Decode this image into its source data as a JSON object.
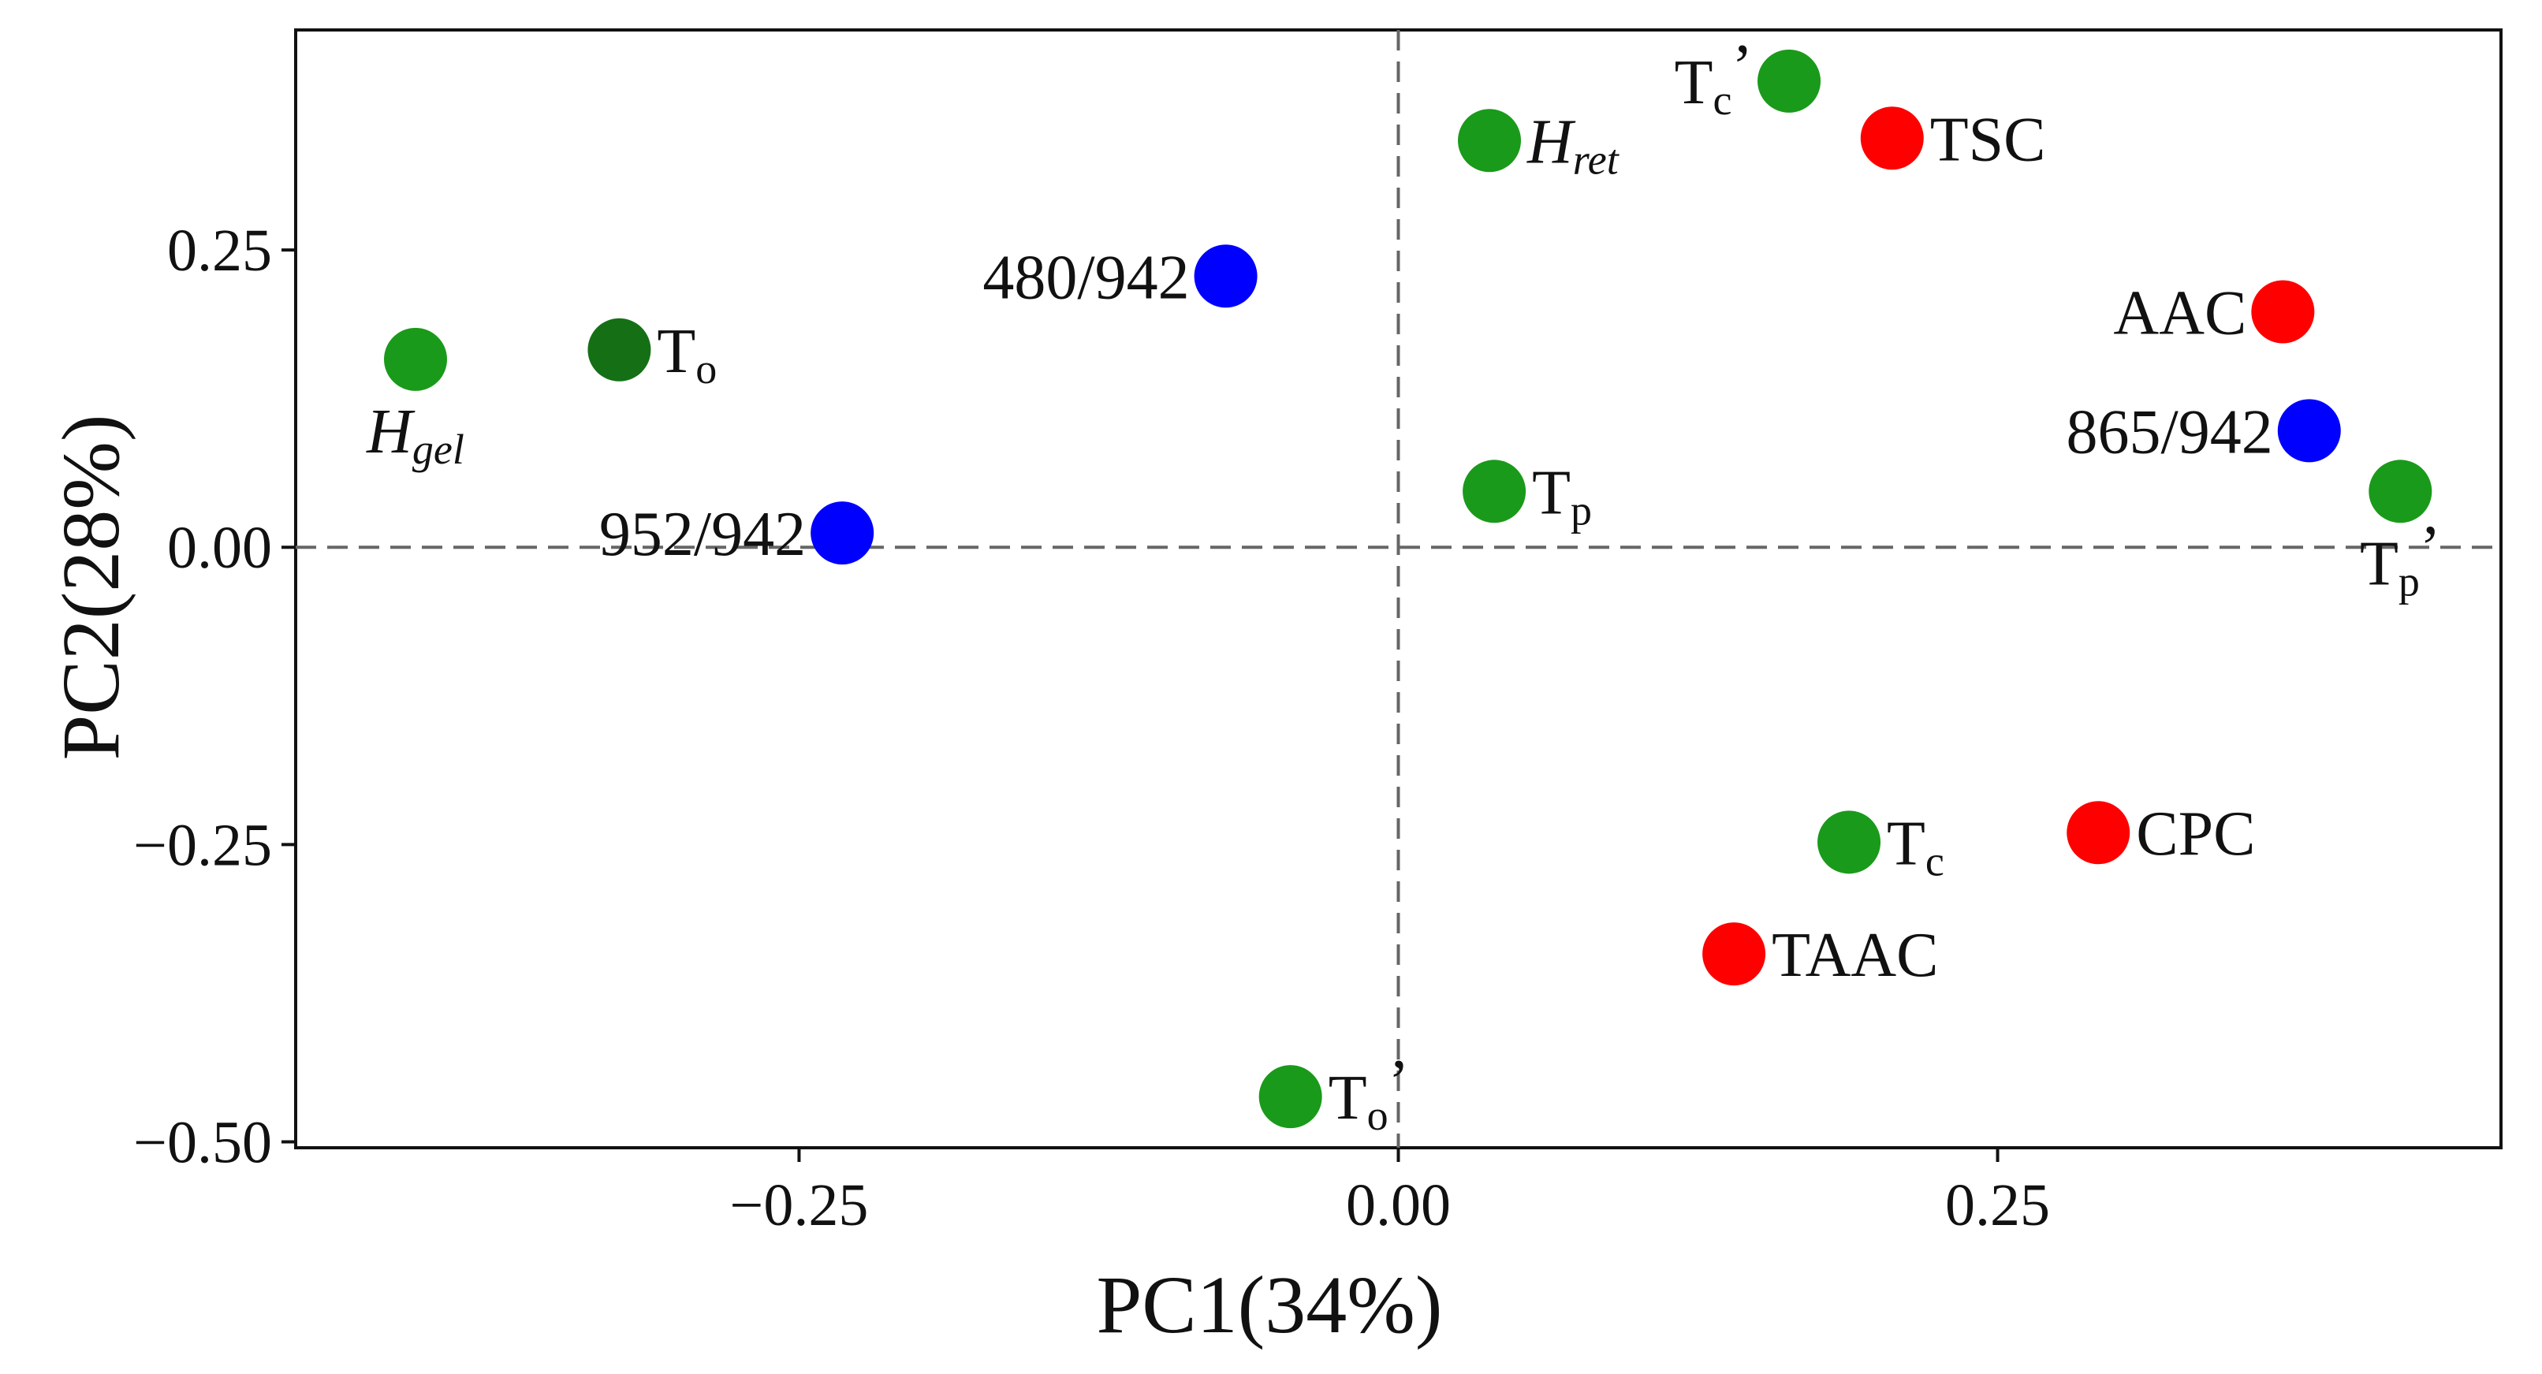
{
  "chart_data": {
    "type": "scatter",
    "title": "",
    "xlabel": "PC1(34%)",
    "ylabel": "PC2(28%)",
    "xlim": [
      -0.46,
      0.46
    ],
    "ylim": [
      -0.505,
      0.435
    ],
    "xticks": [
      {
        "value": -0.25,
        "label": "−0.25"
      },
      {
        "value": 0.0,
        "label": "0.00"
      },
      {
        "value": 0.25,
        "label": "0.25"
      }
    ],
    "yticks": [
      {
        "value": 0.25,
        "label": "0.25"
      },
      {
        "value": 0.0,
        "label": "0.00"
      },
      {
        "value": -0.25,
        "label": "−0.25"
      },
      {
        "value": -0.5,
        "label": "−0.50"
      }
    ],
    "reference_lines": {
      "x": 0,
      "y": 0
    },
    "grid": false,
    "colors": {
      "green": "#1a9a1a",
      "dark_green": "#157015",
      "red": "#ff0000",
      "blue": "#0000ff",
      "axis": "#111111",
      "refline": "#666666"
    },
    "points": [
      {
        "id": "tc-prime",
        "x": 0.163,
        "y": 0.392,
        "color": "green",
        "text": "T",
        "sub": "c",
        "suffix": "’",
        "italic": false,
        "anchor": "left"
      },
      {
        "id": "h-ret",
        "x": 0.038,
        "y": 0.342,
        "color": "green",
        "text": "H",
        "sub": "ret",
        "suffix": "",
        "italic": true,
        "anchor": "right"
      },
      {
        "id": "tsc",
        "x": 0.206,
        "y": 0.344,
        "color": "red",
        "text": "TSC",
        "sub": "",
        "suffix": "",
        "italic": false,
        "anchor": "right"
      },
      {
        "id": "r480-942",
        "x": -0.072,
        "y": 0.228,
        "color": "blue",
        "text": "480/942",
        "sub": "",
        "suffix": "",
        "italic": false,
        "anchor": "left"
      },
      {
        "id": "aac",
        "x": 0.369,
        "y": 0.198,
        "color": "red",
        "text": "AAC",
        "sub": "",
        "suffix": "",
        "italic": false,
        "anchor": "left"
      },
      {
        "id": "h-gel",
        "x": -0.41,
        "y": 0.158,
        "color": "green",
        "text": "H",
        "sub": "gel",
        "suffix": "",
        "italic": true,
        "anchor": "below"
      },
      {
        "id": "t-o",
        "x": -0.325,
        "y": 0.166,
        "color": "dark_green",
        "text": "T",
        "sub": "o",
        "suffix": "",
        "italic": false,
        "anchor": "right"
      },
      {
        "id": "r865-942",
        "x": 0.38,
        "y": 0.098,
        "color": "blue",
        "text": "865/942",
        "sub": "",
        "suffix": "",
        "italic": false,
        "anchor": "left"
      },
      {
        "id": "t-p",
        "x": 0.04,
        "y": 0.047,
        "color": "green",
        "text": "T",
        "sub": "p",
        "suffix": "",
        "italic": false,
        "anchor": "right"
      },
      {
        "id": "tp-prime",
        "x": 0.418,
        "y": 0.047,
        "color": "green",
        "text": "T",
        "sub": "p",
        "suffix": "’",
        "italic": false,
        "anchor": "below"
      },
      {
        "id": "r952-942",
        "x": -0.232,
        "y": 0.012,
        "color": "blue",
        "text": "952/942",
        "sub": "",
        "suffix": "",
        "italic": false,
        "anchor": "left"
      },
      {
        "id": "cpc",
        "x": 0.292,
        "y": -0.24,
        "color": "red",
        "text": "CPC",
        "sub": "",
        "suffix": "",
        "italic": false,
        "anchor": "right"
      },
      {
        "id": "t-c",
        "x": 0.188,
        "y": -0.248,
        "color": "green",
        "text": "T",
        "sub": "c",
        "suffix": "",
        "italic": false,
        "anchor": "right"
      },
      {
        "id": "taac",
        "x": 0.14,
        "y": -0.342,
        "color": "red",
        "text": "TAAC",
        "sub": "",
        "suffix": "",
        "italic": false,
        "anchor": "right"
      },
      {
        "id": "to-prime",
        "x": -0.045,
        "y": -0.462,
        "color": "green",
        "text": "T",
        "sub": "o",
        "suffix": "’",
        "italic": false,
        "anchor": "right"
      }
    ]
  }
}
